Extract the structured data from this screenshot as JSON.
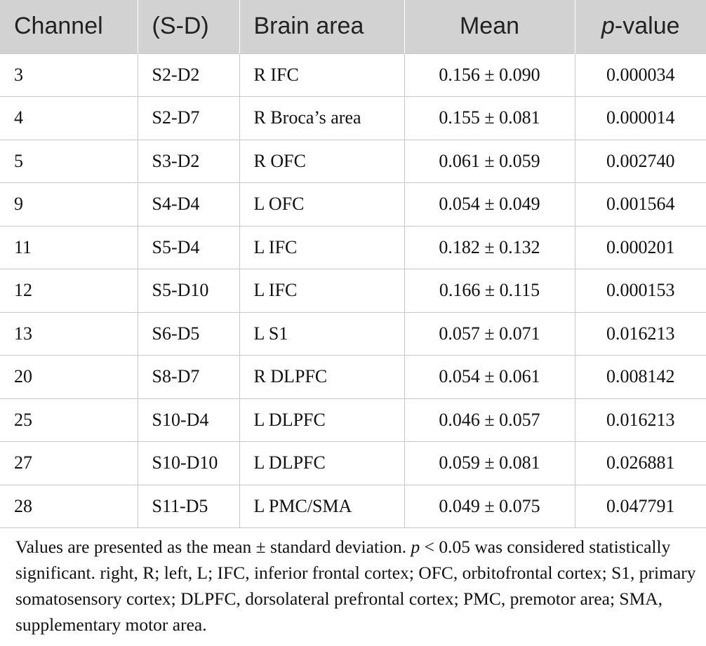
{
  "table": {
    "headers": {
      "channel": "Channel",
      "sd": "(S-D)",
      "brain_area": "Brain area",
      "mean": "Mean",
      "pvalue_p": "p",
      "pvalue_rest": "-value"
    },
    "rows": [
      {
        "channel": "3",
        "sd": "S2-D2",
        "area": "R IFC",
        "mean": "0.156 ± 0.090",
        "p": "0.000034"
      },
      {
        "channel": "4",
        "sd": "S2-D7",
        "area": "R Broca’s area",
        "mean": "0.155 ± 0.081",
        "p": "0.000014"
      },
      {
        "channel": "5",
        "sd": "S3-D2",
        "area": "R OFC",
        "mean": "0.061 ± 0.059",
        "p": "0.002740"
      },
      {
        "channel": "9",
        "sd": "S4-D4",
        "area": "L OFC",
        "mean": "0.054 ± 0.049",
        "p": "0.001564"
      },
      {
        "channel": "11",
        "sd": "S5-D4",
        "area": "L IFC",
        "mean": "0.182 ± 0.132",
        "p": "0.000201"
      },
      {
        "channel": "12",
        "sd": "S5-D10",
        "area": "L IFC",
        "mean": "0.166 ± 0.115",
        "p": "0.000153"
      },
      {
        "channel": "13",
        "sd": "S6-D5",
        "area": "L S1",
        "mean": "0.057 ± 0.071",
        "p": "0.016213"
      },
      {
        "channel": "20",
        "sd": "S8-D7",
        "area": "R DLPFC",
        "mean": "0.054 ± 0.061",
        "p": "0.008142"
      },
      {
        "channel": "25",
        "sd": "S10-D4",
        "area": "L DLPFC",
        "mean": "0.046 ± 0.057",
        "p": "0.016213"
      },
      {
        "channel": "27",
        "sd": "S10-D10",
        "area": "L DLPFC",
        "mean": "0.059 ± 0.081",
        "p": "0.026881"
      },
      {
        "channel": "28",
        "sd": "S11-D5",
        "area": "L PMC/SMA",
        "mean": "0.049 ± 0.075",
        "p": "0.047791"
      }
    ]
  },
  "footnote": {
    "part1": "Values are presented as the mean ± standard deviation. ",
    "p": "p",
    "part2": " < 0.05 was considered statistically significant. right, R; left, L; IFC, inferior frontal cortex; OFC, orbitofrontal cortex; S1, primary somatosensory cortex; DLPFC, dorsolateral prefrontal cortex; PMC, premotor area; SMA, supplementary motor area."
  },
  "colors": {
    "header_bg": "#d2d2d2",
    "grid": "#c8c8c8",
    "text": "#111111"
  }
}
